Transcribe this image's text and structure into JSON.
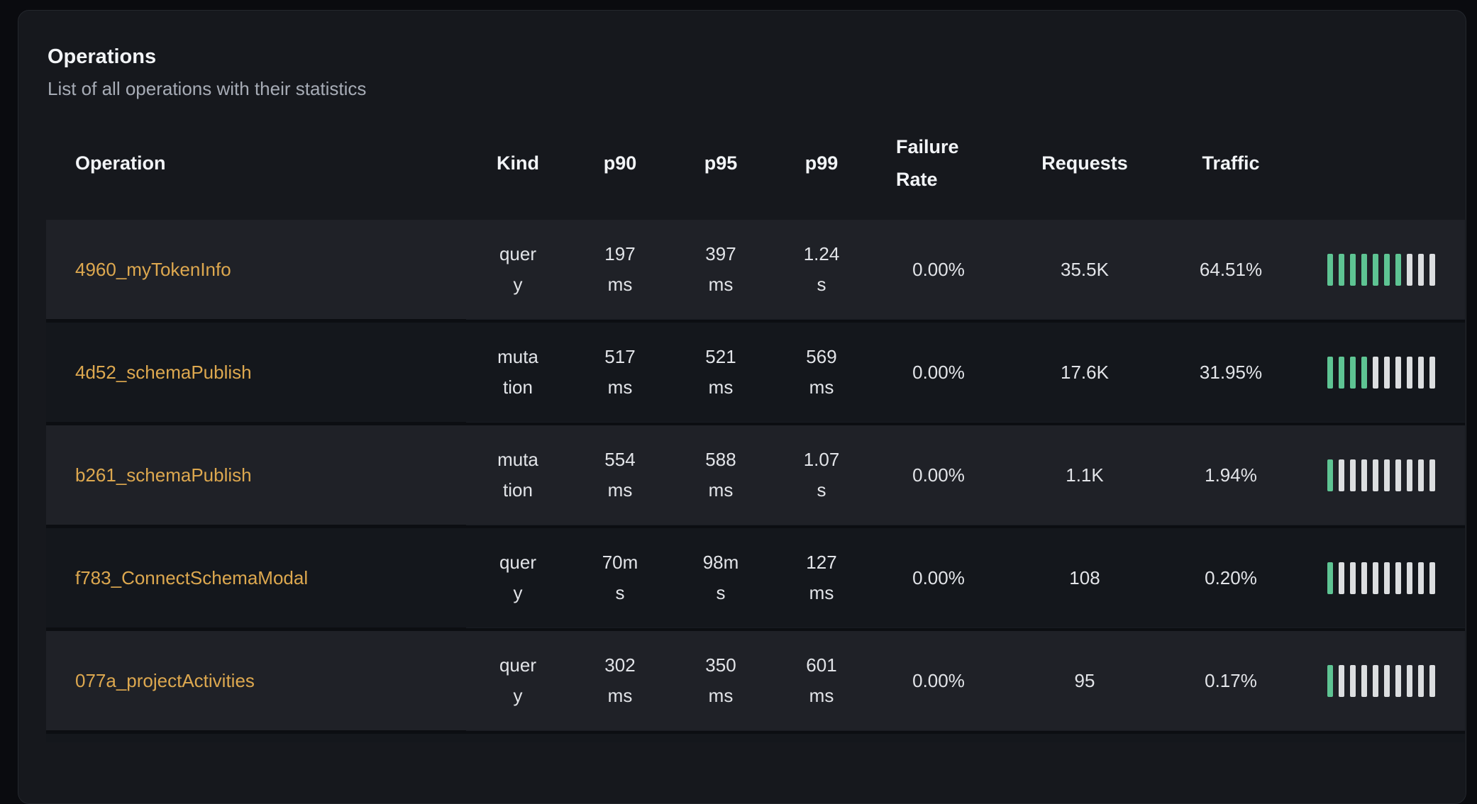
{
  "panel": {
    "title": "Operations",
    "subtitle": "List of all operations with their statistics"
  },
  "table": {
    "columns": [
      {
        "key": "operation",
        "label": "Operation"
      },
      {
        "key": "kind",
        "label": "Kind"
      },
      {
        "key": "p90",
        "label": "p90"
      },
      {
        "key": "p95",
        "label": "p95"
      },
      {
        "key": "p99",
        "label": "p99"
      },
      {
        "key": "failure_rate",
        "label": "Failure Rate"
      },
      {
        "key": "requests",
        "label": "Requests"
      },
      {
        "key": "traffic",
        "label": "Traffic"
      }
    ],
    "rows": [
      {
        "operation": "4960_myTokenInfo",
        "kind": "query",
        "p90": "197 ms",
        "p95": "397 ms",
        "p99": "1.24 s",
        "failure_rate": "0.00%",
        "requests": "35.5K",
        "traffic": "64.51%",
        "traffic_bars_filled": 7,
        "traffic_bars_total": 10
      },
      {
        "operation": "4d52_schemaPublish",
        "kind": "mutation",
        "p90": "517 ms",
        "p95": "521 ms",
        "p99": "569 ms",
        "failure_rate": "0.00%",
        "requests": "17.6K",
        "traffic": "31.95%",
        "traffic_bars_filled": 4,
        "traffic_bars_total": 10
      },
      {
        "operation": "b261_schemaPublish",
        "kind": "mutation",
        "p90": "554 ms",
        "p95": "588 ms",
        "p99": "1.07 s",
        "failure_rate": "0.00%",
        "requests": "1.1K",
        "traffic": "1.94%",
        "traffic_bars_filled": 1,
        "traffic_bars_total": 10
      },
      {
        "operation": "f783_ConnectSchemaModal",
        "kind": "query",
        "p90": "70ms",
        "p95": "98ms",
        "p99": "127 ms",
        "failure_rate": "0.00%",
        "requests": "108",
        "traffic": "0.20%",
        "traffic_bars_filled": 1,
        "traffic_bars_total": 10
      },
      {
        "operation": "077a_projectActivities",
        "kind": "query",
        "p90": "302 ms",
        "p95": "350 ms",
        "p99": "601 ms",
        "failure_rate": "0.00%",
        "requests": "95",
        "traffic": "0.17%",
        "traffic_bars_filled": 1,
        "traffic_bars_total": 10
      }
    ]
  },
  "colors": {
    "accent_link": "#dda84f",
    "bar_filled": "#5ec493",
    "bar_empty": "#dcdee0"
  }
}
